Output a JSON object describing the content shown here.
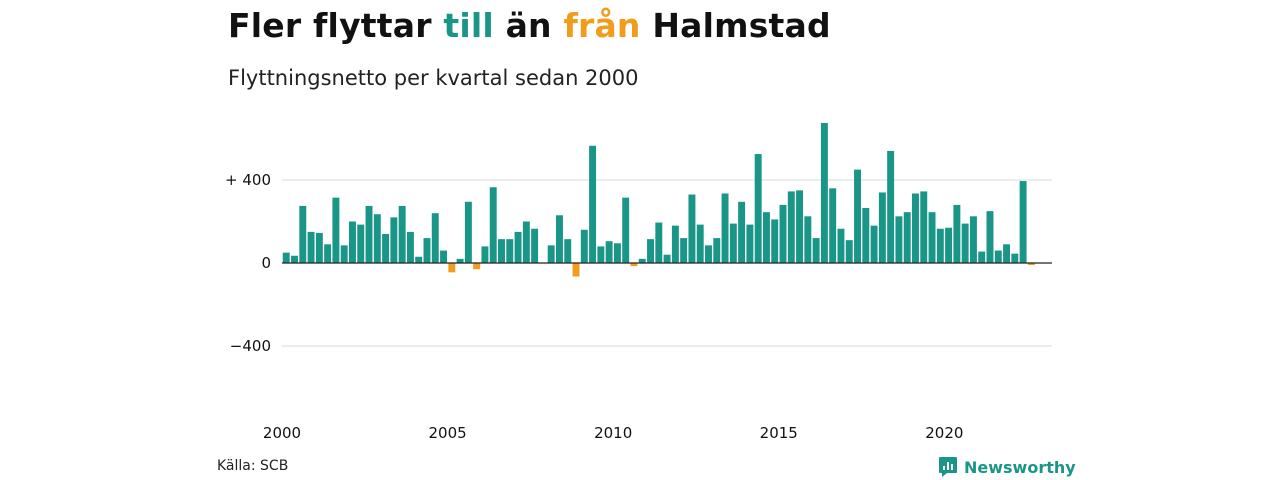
{
  "title": {
    "part1": "Fler flyttar ",
    "part2": "till",
    "part3": " än ",
    "part4": "från",
    "part5": " Halmstad"
  },
  "subtitle": "Flyttningsnetto per kvartal sedan 2000",
  "source": "Källa: SCB",
  "logo_text": "Newsworthy",
  "colors": {
    "positive": "#1a9688",
    "negative": "#f09c1c",
    "grid": "#d9d9d9",
    "zero": "#222222"
  },
  "chart_data": {
    "type": "bar",
    "x_start": 2000,
    "x_step": 0.25,
    "x_ticks": [
      2000,
      2005,
      2010,
      2015,
      2020
    ],
    "y_ticks": [
      {
        "value": 400,
        "label": "+ 400"
      },
      {
        "value": 0,
        "label": "0"
      },
      {
        "value": -400,
        "label": "−400"
      }
    ],
    "ylim": [
      -700,
      700
    ],
    "grid": true,
    "values": [
      50,
      35,
      275,
      150,
      145,
      90,
      315,
      85,
      200,
      185,
      275,
      235,
      140,
      220,
      275,
      150,
      30,
      120,
      240,
      60,
      -45,
      20,
      295,
      -30,
      80,
      365,
      115,
      115,
      150,
      200,
      165,
      0,
      85,
      230,
      115,
      -65,
      160,
      565,
      80,
      105,
      95,
      315,
      -15,
      20,
      115,
      195,
      40,
      180,
      120,
      330,
      185,
      85,
      120,
      335,
      190,
      295,
      185,
      525,
      245,
      210,
      280,
      345,
      350,
      225,
      120,
      675,
      360,
      165,
      110,
      450,
      265,
      180,
      340,
      540,
      225,
      245,
      335,
      345,
      245,
      165,
      170,
      280,
      190,
      225,
      55,
      250,
      60,
      90,
      45,
      395,
      -10
    ]
  }
}
